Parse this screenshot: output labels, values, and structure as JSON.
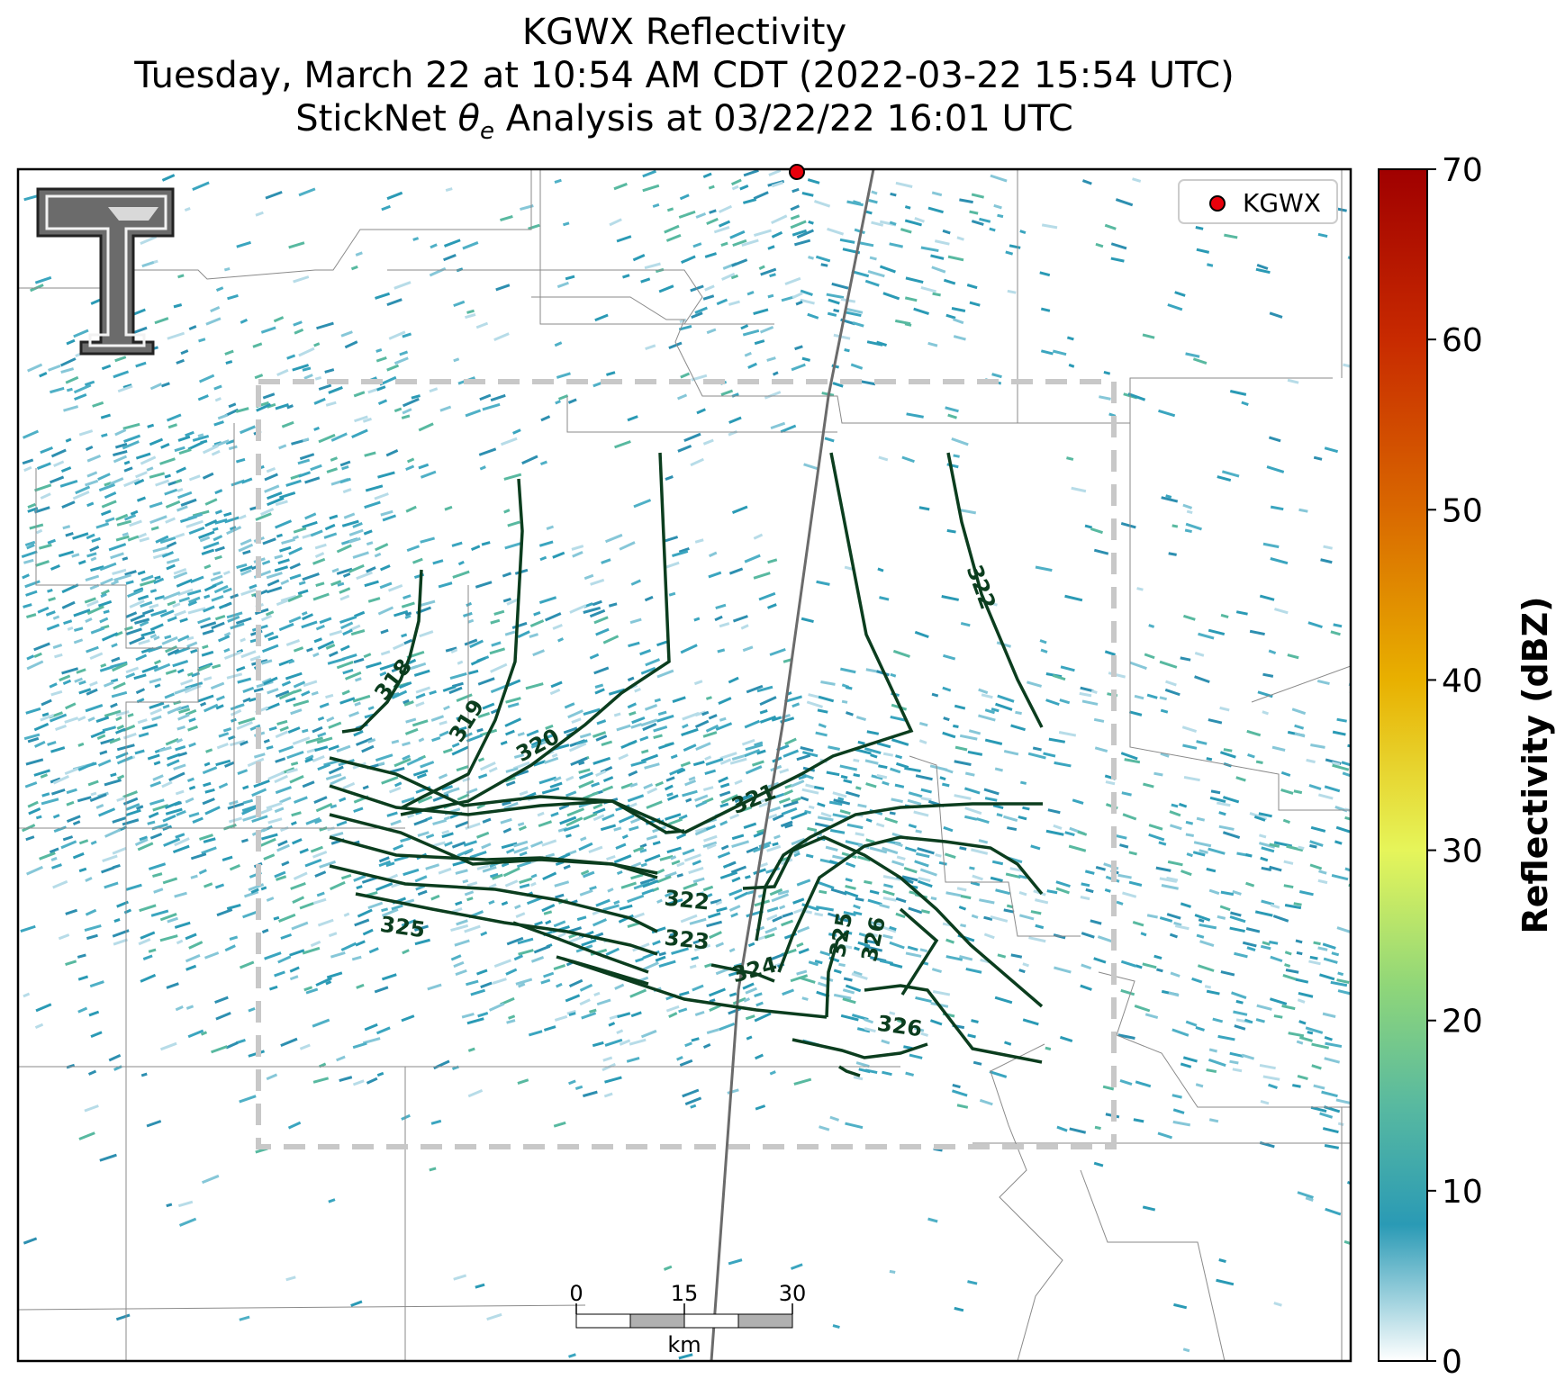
{
  "title": {
    "line1": "KGWX Reflectivity",
    "line2": "Tuesday, March 22 at 10:54 AM CDT (2022-03-22 15:54 UTC)",
    "line3_prefix": "StickNet ",
    "line3_symbol": "θ",
    "line3_subscript": "e",
    "line3_suffix": " Analysis at 03/22/22 16:01 UTC"
  },
  "legend": {
    "marker_label": "KGWX",
    "marker_color": "#e8000b"
  },
  "colorbar": {
    "label": "Reflectivity (dBZ)",
    "ticks": [
      "0",
      "10",
      "20",
      "30",
      "40",
      "50",
      "60",
      "70"
    ],
    "min": 0,
    "max": 70,
    "stops": [
      {
        "value": 0,
        "color": "#ffffff"
      },
      {
        "value": 8,
        "color": "#2a9ab5"
      },
      {
        "value": 15,
        "color": "#58b9a0"
      },
      {
        "value": 22,
        "color": "#8fd679"
      },
      {
        "value": 30,
        "color": "#e6f55a"
      },
      {
        "value": 40,
        "color": "#e8b000"
      },
      {
        "value": 50,
        "color": "#d96800"
      },
      {
        "value": 60,
        "color": "#c82a00"
      },
      {
        "value": 70,
        "color": "#a00000"
      }
    ]
  },
  "contours": {
    "color": "#0b3d1e",
    "labels": [
      "318",
      "319",
      "320",
      "321",
      "322",
      "322",
      "323",
      "324",
      "325",
      "325",
      "326",
      "326"
    ]
  },
  "scale_bar": {
    "ticks": [
      "0",
      "15",
      "30"
    ],
    "unit": "km"
  },
  "colors": {
    "echo": "#2a9ab5",
    "analysis_box": "#c8c8c8",
    "border": "#808080"
  }
}
